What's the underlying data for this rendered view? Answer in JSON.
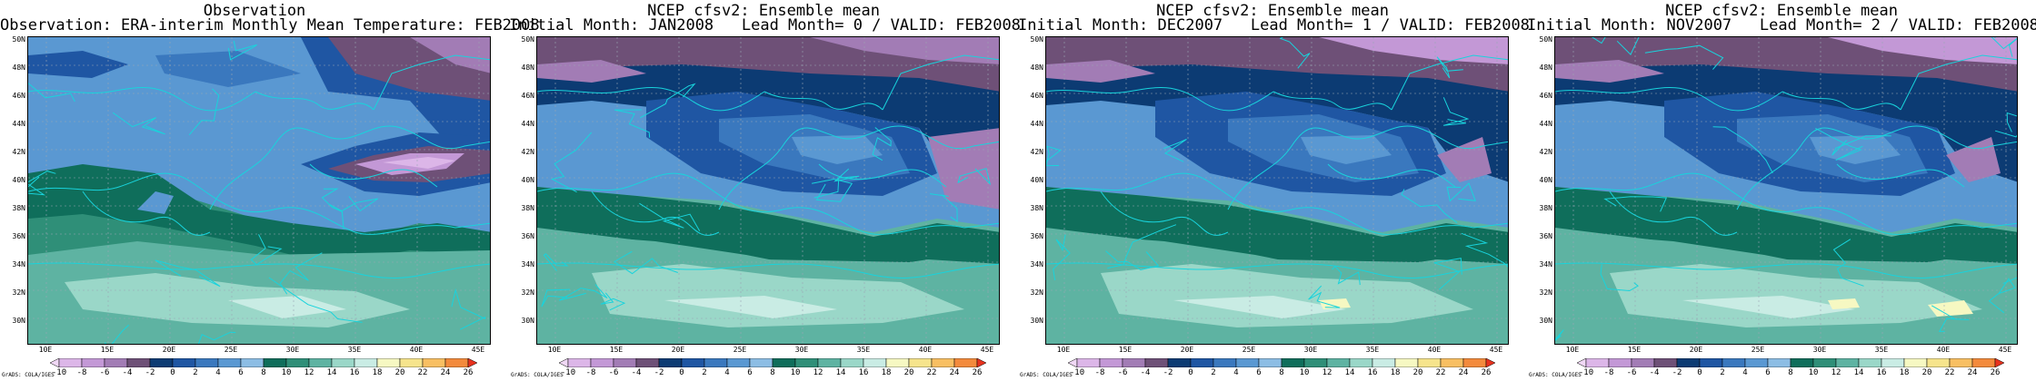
{
  "panels": [
    {
      "title_line1": "Observation",
      "title_line2": "Observation: ERA-interim Monthly Mean Temperature: FEB2008",
      "variant": 0
    },
    {
      "title_line1": "NCEP cfsv2: Ensemble mean",
      "title_line2": "Initial Month: JAN2008   Lead Month= 0 / VALID: FEB2008",
      "variant": 1
    },
    {
      "title_line1": "NCEP cfsv2: Ensemble mean",
      "title_line2": "Initial Month: DEC2007   Lead Month= 1 / VALID: FEB2008",
      "variant": 2
    },
    {
      "title_line1": "NCEP cfsv2: Ensemble mean",
      "title_line2": "Initial Month: NOV2007   Lead Month= 2 / VALID: FEB2008",
      "variant": 3
    }
  ],
  "lat_labels": [
    "50N",
    "48N",
    "46N",
    "44N",
    "42N",
    "40N",
    "38N",
    "36N",
    "34N",
    "32N",
    "30N"
  ],
  "lon_labels": [
    "10E",
    "15E",
    "20E",
    "25E",
    "30E",
    "35E",
    "40E",
    "45E"
  ],
  "colorbar": {
    "ticks": [
      "-10",
      "-8",
      "-6",
      "-4",
      "-2",
      "0",
      "2",
      "4",
      "6",
      "8",
      "10",
      "12",
      "14",
      "16",
      "18",
      "20",
      "22",
      "24",
      "26"
    ],
    "colors": [
      "#f0d8f5",
      "#dcb6e8",
      "#c398d6",
      "#a27cb5",
      "#6e5077",
      "#0c3b73",
      "#1f56a3",
      "#3a78be",
      "#5a98d2",
      "#8cbde4",
      "#0f6e5b",
      "#2f8f78",
      "#5eb3a2",
      "#9ad7c8",
      "#c9ece4",
      "#f6f8c2",
      "#f6e48c",
      "#f8bf62",
      "#f38a3c",
      "#e8321e"
    ]
  },
  "credit": "GrADS: COLA/IGES"
}
